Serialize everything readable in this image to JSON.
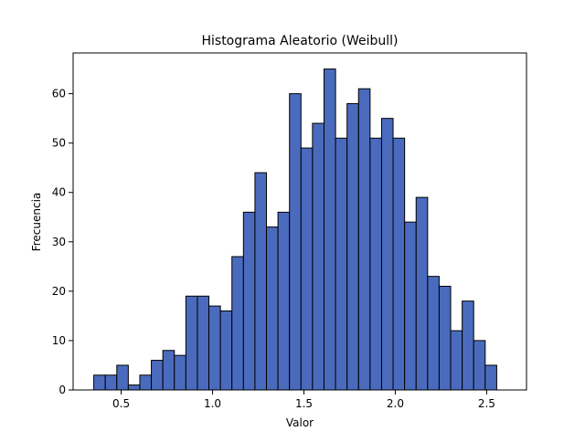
{
  "chart_data": {
    "type": "bar",
    "title": "Histograma Aleatorio (Weibull)",
    "xlabel": "Valor",
    "ylabel": "Frecuencia",
    "xlim": [
      0.237,
      2.718
    ],
    "ylim": [
      0,
      68.25
    ],
    "xticks": [
      0.5,
      1.0,
      1.5,
      2.0,
      2.5
    ],
    "xtick_labels": [
      "0.5",
      "1.0",
      "1.5",
      "2.0",
      "2.5"
    ],
    "yticks": [
      0,
      10,
      20,
      30,
      40,
      50,
      60
    ],
    "ytick_labels": [
      "0",
      "10",
      "20",
      "30",
      "40",
      "50",
      "60"
    ],
    "bin_start": 0.35,
    "bin_width": 0.063,
    "values": [
      3,
      3,
      5,
      1,
      3,
      6,
      8,
      7,
      19,
      19,
      17,
      16,
      27,
      36,
      44,
      33,
      36,
      60,
      49,
      54,
      65,
      51,
      58,
      61,
      51,
      55,
      51,
      34,
      39,
      23,
      21,
      12,
      18,
      10,
      5
    ],
    "bar_color": "#4a6bbd",
    "edge_color": "#000000",
    "grid": false,
    "legend": "none"
  }
}
